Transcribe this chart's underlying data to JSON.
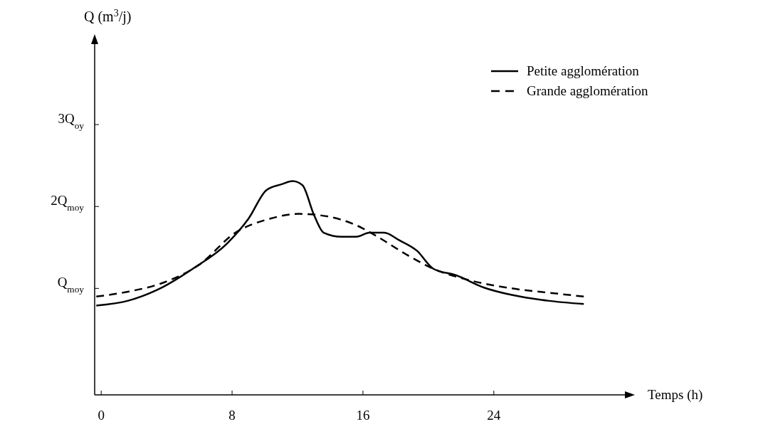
{
  "chart_data": {
    "type": "line",
    "xlabel": "Temps (h)",
    "ylabel": "Q (m$^{3}$/j)",
    "xlim": [
      -0.4,
      32.1
    ],
    "xticks": [
      0,
      8,
      16,
      24
    ],
    "ylim": [
      -0.3,
      4
    ],
    "yticks": [
      {
        "value": 1,
        "label": "Q$_{moy}$"
      },
      {
        "value": 2,
        "label": "2Q$_{moy}$"
      },
      {
        "value": 3,
        "label": "3Q$_{oy}$"
      }
    ],
    "legend": "top right",
    "grid": false,
    "series": [
      {
        "name": "Petite agglomération",
        "color": "#000000",
        "line_style": "solid",
        "x": [
          -0.3,
          1.65,
          3.4,
          5.6,
          7.7,
          9,
          10.1,
          11,
          11.7,
          12.3,
          13,
          13.6,
          14.7,
          15.6,
          16.4,
          17.3,
          18.2,
          19.3,
          20.3,
          21.7,
          23.4,
          25.1,
          27.3,
          29.5
        ],
        "values": [
          0.79,
          0.85,
          0.98,
          1.24,
          1.55,
          1.85,
          2.2,
          2.27,
          2.31,
          2.26,
          1.9,
          1.68,
          1.63,
          1.63,
          1.68,
          1.68,
          1.59,
          1.46,
          1.24,
          1.16,
          1.01,
          0.92,
          0.85,
          0.81
        ]
      },
      {
        "name": "Grande agglomération",
        "color": "#000000",
        "line_style": "dashed",
        "x": [
          -0.3,
          1.65,
          3.8,
          6,
          8.2,
          10.3,
          12.1,
          13.8,
          15.6,
          16.9,
          18.6,
          20.3,
          22.5,
          25.1,
          27.7,
          29.5
        ],
        "values": [
          0.9,
          0.96,
          1.07,
          1.29,
          1.68,
          1.85,
          1.91,
          1.88,
          1.77,
          1.63,
          1.42,
          1.24,
          1.1,
          1.0,
          0.94,
          0.9
        ]
      }
    ]
  }
}
